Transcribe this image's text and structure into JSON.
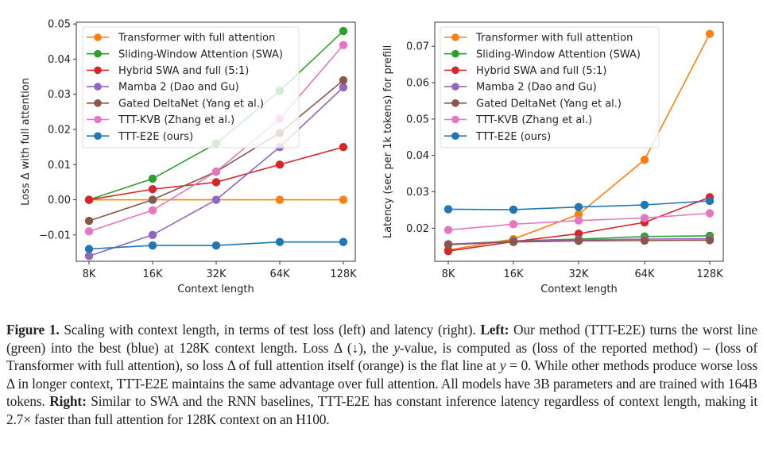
{
  "chart_data": [
    {
      "type": "line",
      "title": "",
      "xlabel": "Context length",
      "ylabel": "Loss Δ with full attention",
      "categories": [
        "8K",
        "16K",
        "32K",
        "64K",
        "128K"
      ],
      "ylim": [
        -0.0175,
        0.0505
      ],
      "yticks": [
        -0.01,
        0.0,
        0.01,
        0.02,
        0.03,
        0.04,
        0.05
      ],
      "ytick_labels": [
        "−0.01",
        "0.00",
        "0.01",
        "0.02",
        "0.03",
        "0.04",
        "0.05"
      ],
      "grid": false,
      "legend_position": "top-left",
      "series": [
        {
          "name": "Transformer with full attention",
          "color": "#ff7f0e",
          "values": [
            0.0,
            0.0,
            0.0,
            0.0,
            0.0
          ]
        },
        {
          "name": "Sliding-Window Attention (SWA)",
          "color": "#2ca02c",
          "values": [
            0.0,
            0.006,
            0.016,
            0.031,
            0.048
          ]
        },
        {
          "name": "Hybrid SWA and full (5:1)",
          "color": "#d62728",
          "values": [
            0.0,
            0.003,
            0.005,
            0.01,
            0.015
          ]
        },
        {
          "name": "Mamba 2 (Dao and Gu)",
          "color": "#9467bd",
          "values": [
            -0.016,
            -0.01,
            0.0,
            0.015,
            0.032
          ]
        },
        {
          "name": "Gated DeltaNet (Yang et al.)",
          "color": "#8c564b",
          "values": [
            -0.006,
            0.0,
            0.008,
            0.019,
            0.034
          ]
        },
        {
          "name": "TTT-KVB (Zhang et al.)",
          "color": "#e377c2",
          "values": [
            -0.009,
            -0.003,
            0.008,
            0.023,
            0.044
          ]
        },
        {
          "name": "TTT-E2E (ours)",
          "color": "#1f77b4",
          "values": [
            -0.014,
            -0.013,
            -0.013,
            -0.012,
            -0.012
          ]
        }
      ]
    },
    {
      "type": "line",
      "title": "",
      "xlabel": "Context length",
      "ylabel": "Latency (sec per 1k tokens) for prefill",
      "categories": [
        "8K",
        "16K",
        "32K",
        "64K",
        "128K"
      ],
      "ylim": [
        0.0109,
        0.0766
      ],
      "yticks": [
        0.02,
        0.03,
        0.04,
        0.05,
        0.06,
        0.07
      ],
      "ytick_labels": [
        "0.02",
        "0.03",
        "0.04",
        "0.05",
        "0.06",
        "0.07"
      ],
      "grid": false,
      "legend_position": "top-left",
      "series": [
        {
          "name": "Transformer with full attention",
          "color": "#ff7f0e",
          "values": [
            0.014,
            0.017,
            0.0238,
            0.0388,
            0.0734
          ]
        },
        {
          "name": "Sliding-Window Attention (SWA)",
          "color": "#2ca02c",
          "values": [
            0.0155,
            0.0165,
            0.017,
            0.0177,
            0.0179
          ]
        },
        {
          "name": "Hybrid SWA and full (5:1)",
          "color": "#d62728",
          "values": [
            0.0137,
            0.0163,
            0.0185,
            0.0216,
            0.0285
          ]
        },
        {
          "name": "Mamba 2 (Dao and Gu)",
          "color": "#9467bd",
          "values": [
            0.0156,
            0.0164,
            0.0168,
            0.017,
            0.0171
          ]
        },
        {
          "name": "Gated DeltaNet (Yang et al.)",
          "color": "#8c564b",
          "values": [
            0.0155,
            0.0162,
            0.0165,
            0.0166,
            0.0167
          ]
        },
        {
          "name": "TTT-KVB (Zhang et al.)",
          "color": "#e377c2",
          "values": [
            0.0195,
            0.0211,
            0.0221,
            0.0228,
            0.0241
          ]
        },
        {
          "name": "TTT-E2E (ours)",
          "color": "#1f77b4",
          "values": [
            0.0252,
            0.0251,
            0.0258,
            0.0264,
            0.0275
          ]
        }
      ]
    }
  ],
  "caption": {
    "figure_label": "Figure 1.",
    "intro": " Scaling with context length, in terms of test loss (left) and latency (right). ",
    "left_label": "Left:",
    "left_text_1": " Our method (TTT-E2E) turns the worst line (green) into the best (blue) at 128K context length. Loss Δ (↓), the ",
    "yvar": "y",
    "left_text_2": "-value, is computed as (loss of the reported method) – (loss of Transformer with full attention), so loss Δ of full attention itself (orange) is the flat line at ",
    "yvar2": "y",
    "left_text_3": " = 0. While other methods produce worse loss Δ in longer context, TTT-E2E maintains the same advantage over full attention. All models have 3B parameters and are trained with 164B tokens. ",
    "right_label": "Right:",
    "right_text": " Similar to SWA and the RNN baselines, TTT-E2E has constant inference latency regardless of context length, making it 2.7× faster than full attention for 128K context on an H100."
  }
}
